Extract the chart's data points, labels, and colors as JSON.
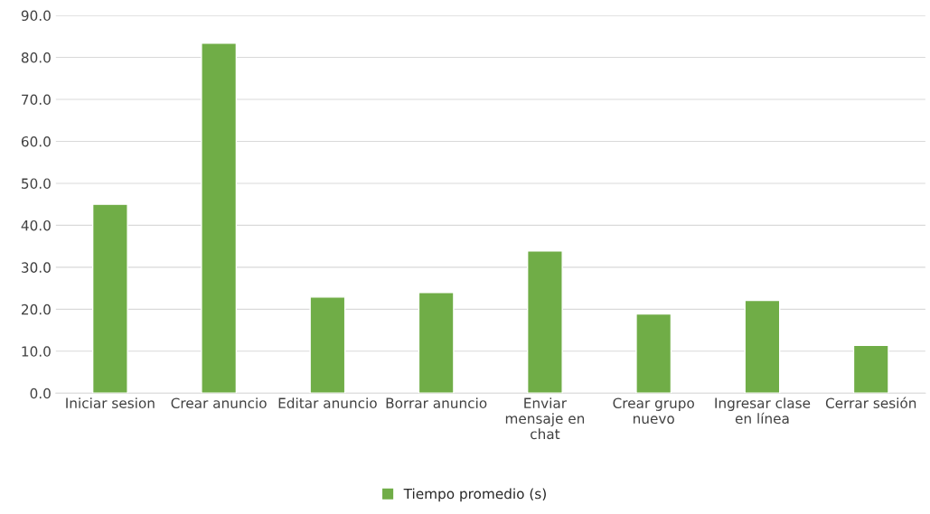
{
  "chart_data": {
    "type": "bar",
    "categories": [
      "Iniciar sesion",
      "Crear anuncio",
      "Editar anuncio",
      "Borrar anuncio",
      "Enviar\nmensaje en\nchat",
      "Crear grupo\nnuevo",
      "Ingresar clase\nen línea",
      "Cerrar sesión"
    ],
    "series": [
      {
        "name": "Tiempo promedio (s)",
        "color": "#70ad47",
        "values": [
          45.0,
          83.4,
          22.9,
          24.0,
          33.9,
          18.9,
          22.1,
          11.4
        ]
      }
    ],
    "ylim": [
      0,
      90
    ],
    "yticks": [
      {
        "value": 0,
        "label": "0.0"
      },
      {
        "value": 10,
        "label": "10.0"
      },
      {
        "value": 20,
        "label": "20.0"
      },
      {
        "value": 30,
        "label": "30.0"
      },
      {
        "value": 40,
        "label": "40.0"
      },
      {
        "value": 50,
        "label": "50.0"
      },
      {
        "value": 60,
        "label": "60.0"
      },
      {
        "value": 70,
        "label": "70.0"
      },
      {
        "value": 80,
        "label": "80.0"
      },
      {
        "value": 90,
        "label": "90.0"
      }
    ],
    "grid": "y",
    "legend": "bottom"
  }
}
